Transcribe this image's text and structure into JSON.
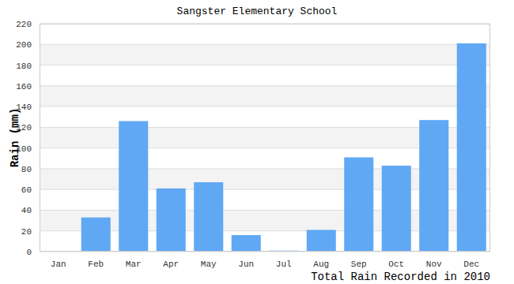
{
  "chart_data": {
    "type": "bar",
    "title": "Sangster Elementary School",
    "x_label": "Total Rain Recorded in 2010",
    "y_label": "Rain (mm)",
    "categories": [
      "Jan",
      "Feb",
      "Mar",
      "Apr",
      "May",
      "Jun",
      "Jul",
      "Aug",
      "Sep",
      "Oct",
      "Nov",
      "Dec"
    ],
    "values": [
      0,
      33,
      126,
      61,
      67,
      16,
      1,
      21,
      91,
      83,
      127,
      201
    ],
    "color": "#60a8f4",
    "ylim": [
      0,
      220
    ],
    "yticks": [
      0,
      20,
      40,
      60,
      80,
      100,
      120,
      140,
      160,
      180,
      200,
      220
    ],
    "grid": true
  }
}
